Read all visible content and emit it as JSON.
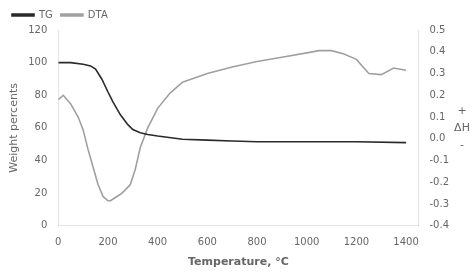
{
  "chart_data": {
    "type": "line",
    "xlabel": "Temperature, °C",
    "ylabel": "Weight percents",
    "y2label": [
      "+",
      "ΔH",
      "-"
    ],
    "xlim": [
      0,
      1450
    ],
    "xticks": [
      0,
      200,
      400,
      600,
      800,
      1000,
      1200,
      1400
    ],
    "ylim": [
      0,
      120
    ],
    "yticks": [
      0,
      20,
      40,
      60,
      80,
      100,
      120
    ],
    "y2lim": [
      -0.4,
      0.5
    ],
    "y2ticks": [
      -0.4,
      -0.3,
      -0.2,
      -0.1,
      {
        "value": 0.0,
        "label": "0.0"
      },
      0.1,
      0.2,
      0.3,
      0.4,
      0.5
    ],
    "grid": false,
    "legend": "upper left",
    "series": [
      {
        "name": "TG",
        "color": "#2a2a2a",
        "x": [
          0,
          50,
          100,
          130,
          150,
          175,
          200,
          220,
          250,
          280,
          300,
          330,
          360,
          400,
          500,
          600,
          700,
          800,
          1000,
          1200,
          1400
        ],
        "values": [
          100,
          100,
          99,
          98,
          96,
          90,
          82,
          76,
          68,
          62,
          59,
          57,
          56,
          55,
          53,
          52.5,
          52,
          51.5,
          51.5,
          51.5,
          51
        ]
      },
      {
        "name": "DTA",
        "color": "#a0a0a0",
        "axis": "y2",
        "x": [
          0,
          20,
          50,
          80,
          100,
          120,
          140,
          160,
          180,
          200,
          210,
          230,
          250,
          270,
          290,
          310,
          330,
          360,
          400,
          450,
          500,
          600,
          700,
          800,
          900,
          1000,
          1050,
          1100,
          1150,
          1200,
          1250,
          1300,
          1350,
          1400
        ],
        "values": [
          0.18,
          0.2,
          0.16,
          0.1,
          0.04,
          -0.05,
          -0.13,
          -0.21,
          -0.265,
          -0.285,
          -0.285,
          -0.27,
          -0.255,
          -0.235,
          -0.21,
          -0.14,
          -0.04,
          0.05,
          0.14,
          0.21,
          0.26,
          0.3,
          0.33,
          0.355,
          0.375,
          0.395,
          0.405,
          0.405,
          0.39,
          0.365,
          0.3,
          0.295,
          0.325,
          0.315
        ]
      }
    ]
  }
}
